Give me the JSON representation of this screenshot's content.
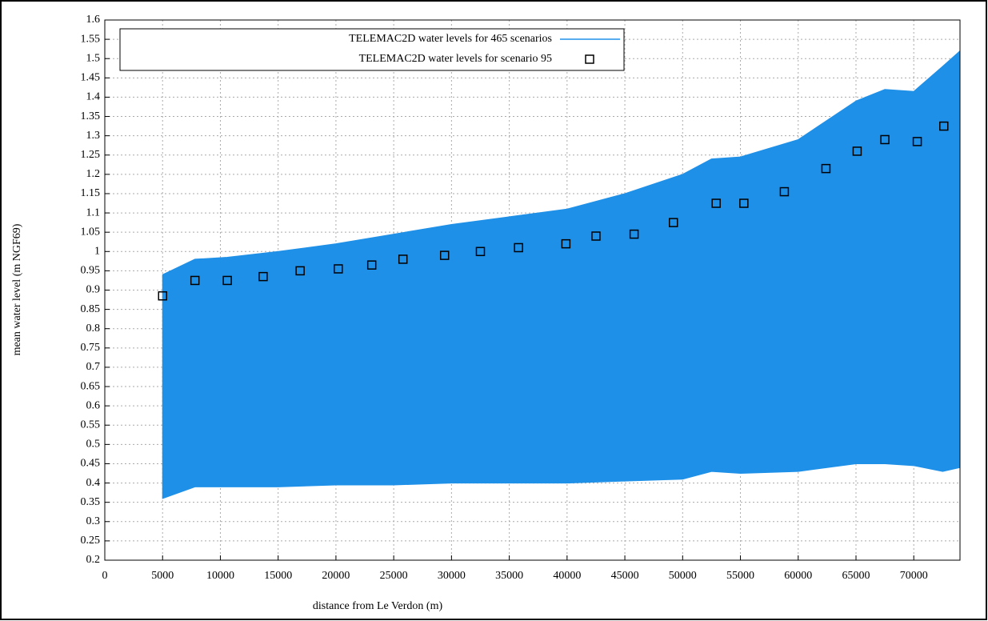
{
  "chart_data": {
    "type": "band-scatter",
    "xlabel": "distance from Le Verdon (m)",
    "ylabel": "mean water level (m NGF69)",
    "xlim": [
      0,
      74000
    ],
    "xticks": [
      0,
      5000,
      10000,
      15000,
      20000,
      25000,
      30000,
      35000,
      40000,
      45000,
      50000,
      55000,
      60000,
      65000,
      70000
    ],
    "ylim": [
      0.2,
      1.6
    ],
    "yticks": [
      0.2,
      0.25,
      0.3,
      0.35,
      0.4,
      0.45,
      0.5,
      0.55,
      0.6,
      0.65,
      0.7,
      0.75,
      0.8,
      0.85,
      0.9,
      0.95,
      1,
      1.05,
      1.1,
      1.15,
      1.2,
      1.25,
      1.3,
      1.35,
      1.4,
      1.45,
      1.5,
      1.55,
      1.6
    ],
    "grid": true,
    "legend": "top-left",
    "band": {
      "name": "TELEMAC2D water levels for 465 scenarios",
      "color": "#1e90e8",
      "x": [
        5000,
        7800,
        10600,
        15000,
        20000,
        25000,
        30000,
        35000,
        40000,
        45000,
        50000,
        52500,
        55000,
        60000,
        65000,
        67500,
        70000,
        72500,
        74000
      ],
      "upper": [
        0.94,
        0.98,
        0.985,
        1.0,
        1.02,
        1.045,
        1.07,
        1.09,
        1.11,
        1.15,
        1.2,
        1.24,
        1.245,
        1.29,
        1.39,
        1.42,
        1.415,
        1.48,
        1.52
      ],
      "lower": [
        0.36,
        0.39,
        0.39,
        0.39,
        0.395,
        0.395,
        0.4,
        0.4,
        0.4,
        0.405,
        0.41,
        0.43,
        0.425,
        0.43,
        0.45,
        0.45,
        0.445,
        0.43,
        0.44
      ]
    },
    "series": [
      {
        "name": "TELEMAC2D water levels for scenario 95",
        "color": "#000000",
        "x": [
          5000,
          7800,
          10600,
          13700,
          16900,
          20200,
          23100,
          25800,
          29400,
          32500,
          35800,
          39900,
          42500,
          45800,
          49200,
          52900,
          55300,
          58800,
          62400,
          65100,
          67500,
          70300,
          72600
        ],
        "values": [
          0.885,
          0.925,
          0.925,
          0.935,
          0.95,
          0.955,
          0.965,
          0.98,
          0.99,
          1.0,
          1.01,
          1.02,
          1.04,
          1.045,
          1.075,
          1.125,
          1.125,
          1.155,
          1.215,
          1.26,
          1.29,
          1.285,
          1.325
        ]
      }
    ]
  }
}
